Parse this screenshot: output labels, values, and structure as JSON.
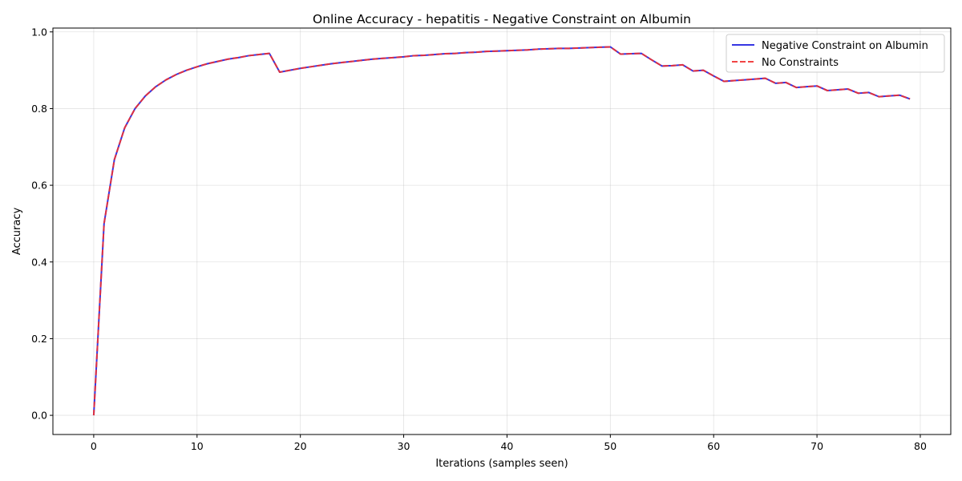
{
  "chart_data": {
    "type": "line",
    "title": "Online Accuracy - hepatitis - Negative Constraint on Albumin",
    "xlabel": "Iterations (samples seen)",
    "ylabel": "Accuracy",
    "xlim": [
      -3.95,
      82.95
    ],
    "ylim": [
      -0.05,
      1.01
    ],
    "xticks": [
      0,
      10,
      20,
      30,
      40,
      50,
      60,
      70,
      80
    ],
    "yticks": [
      0.0,
      0.2,
      0.4,
      0.6,
      0.8,
      1.0
    ],
    "xtick_labels": [
      "0",
      "10",
      "20",
      "30",
      "40",
      "50",
      "60",
      "70",
      "80"
    ],
    "ytick_labels": [
      "0.0",
      "0.2",
      "0.4",
      "0.6",
      "0.8",
      "1.0"
    ],
    "grid": true,
    "legend_position": "top-right",
    "x": [
      0,
      1,
      2,
      3,
      4,
      5,
      6,
      7,
      8,
      9,
      10,
      11,
      12,
      13,
      14,
      15,
      16,
      17,
      18,
      19,
      20,
      21,
      22,
      23,
      24,
      25,
      26,
      27,
      28,
      29,
      30,
      31,
      32,
      33,
      34,
      35,
      36,
      37,
      38,
      39,
      40,
      41,
      42,
      43,
      44,
      45,
      46,
      47,
      48,
      49,
      50,
      51,
      52,
      53,
      54,
      55,
      56,
      57,
      58,
      59,
      60,
      61,
      62,
      63,
      64,
      65,
      66,
      67,
      68,
      69,
      70,
      71,
      72,
      73,
      74,
      75,
      76,
      77,
      78,
      79
    ],
    "series": [
      {
        "name": "Negative Constraint on Albumin",
        "color": "#2020e0",
        "style": "solid",
        "values": [
          0.0,
          0.5,
          0.667,
          0.75,
          0.8,
          0.833,
          0.857,
          0.875,
          0.889,
          0.9,
          0.909,
          0.917,
          0.923,
          0.929,
          0.933,
          0.938,
          0.941,
          0.944,
          0.895,
          0.9,
          0.905,
          0.909,
          0.913,
          0.917,
          0.92,
          0.923,
          0.926,
          0.929,
          0.931,
          0.933,
          0.935,
          0.938,
          0.939,
          0.941,
          0.943,
          0.944,
          0.946,
          0.947,
          0.949,
          0.95,
          0.951,
          0.952,
          0.953,
          0.955,
          0.956,
          0.957,
          0.957,
          0.958,
          0.959,
          0.96,
          0.961,
          0.942,
          0.943,
          0.944,
          0.927,
          0.911,
          0.912,
          0.914,
          0.898,
          0.9,
          0.885,
          0.871,
          0.873,
          0.875,
          0.877,
          0.879,
          0.866,
          0.868,
          0.855,
          0.857,
          0.859,
          0.847,
          0.849,
          0.851,
          0.84,
          0.842,
          0.831,
          0.833,
          0.835,
          0.825
        ]
      },
      {
        "name": "No Constraints",
        "color": "#f03030",
        "style": "dashed",
        "values": [
          0.0,
          0.5,
          0.667,
          0.75,
          0.8,
          0.833,
          0.857,
          0.875,
          0.889,
          0.9,
          0.909,
          0.917,
          0.923,
          0.929,
          0.933,
          0.938,
          0.941,
          0.944,
          0.895,
          0.9,
          0.905,
          0.909,
          0.913,
          0.917,
          0.92,
          0.923,
          0.926,
          0.929,
          0.931,
          0.933,
          0.935,
          0.938,
          0.939,
          0.941,
          0.943,
          0.944,
          0.946,
          0.947,
          0.949,
          0.95,
          0.951,
          0.952,
          0.953,
          0.955,
          0.956,
          0.957,
          0.957,
          0.958,
          0.959,
          0.96,
          0.961,
          0.942,
          0.943,
          0.944,
          0.927,
          0.911,
          0.912,
          0.914,
          0.898,
          0.9,
          0.885,
          0.871,
          0.873,
          0.875,
          0.877,
          0.879,
          0.866,
          0.868,
          0.855,
          0.857,
          0.859,
          0.847,
          0.849,
          0.851,
          0.84,
          0.842,
          0.831,
          0.833,
          0.835,
          0.825
        ]
      }
    ]
  }
}
